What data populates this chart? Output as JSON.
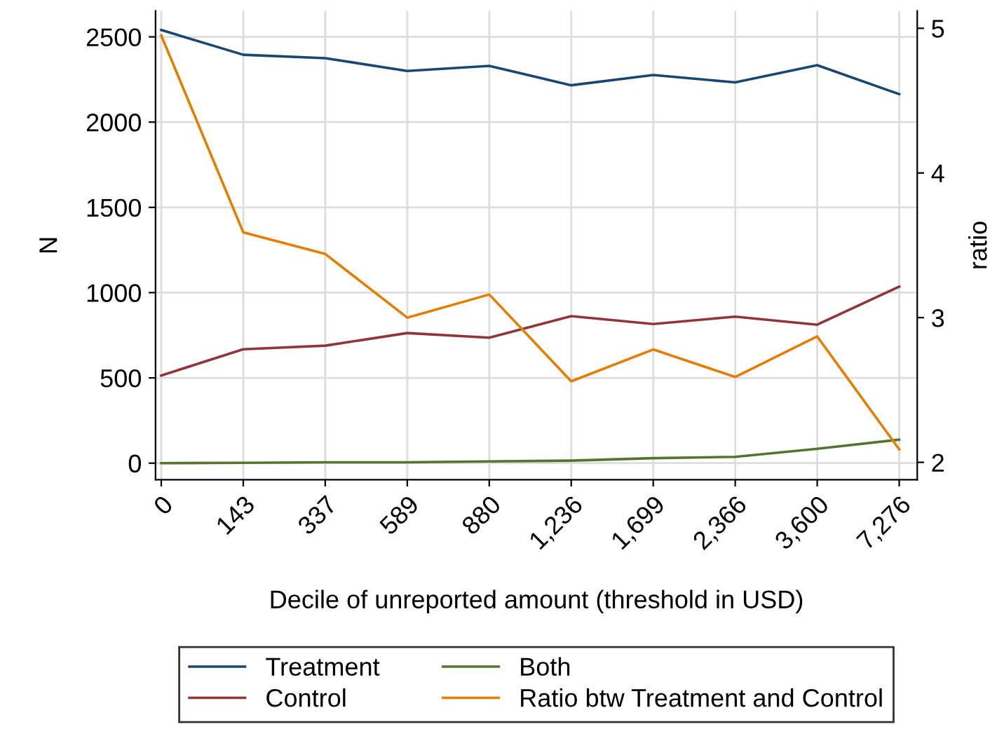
{
  "chart_data": {
    "type": "line",
    "xlabel": "Decile of unreported amount (threshold in USD)",
    "ylabel": "N",
    "y2label": "ratio",
    "categories": [
      "0",
      "143",
      "337",
      "589",
      "880",
      "1,236",
      "1,699",
      "2,366",
      "3,600",
      "7,276"
    ],
    "series": [
      {
        "name": "Treatment",
        "color": "#1a476f",
        "values": [
          2540,
          2395,
          2375,
          2300,
          2330,
          2216,
          2276,
          2233,
          2334,
          2164
        ]
      },
      {
        "name": "Control",
        "color": "#90353b",
        "values": [
          514,
          668,
          689,
          763,
          736,
          862,
          816,
          859,
          812,
          1035
        ]
      },
      {
        "name": "Both",
        "color": "#55752f",
        "values": [
          0,
          2,
          5,
          5,
          10,
          15,
          29,
          37,
          84,
          138
        ]
      },
      {
        "name": "Ratio btw Treatment and Control",
        "color": "#e37e00",
        "axis": "y2",
        "values": [
          4.95,
          3.59,
          3.44,
          3.0,
          3.16,
          2.56,
          2.78,
          2.59,
          2.87,
          2.09
        ]
      }
    ],
    "ylim": [
      -97,
      2652
    ],
    "yticks": [
      0,
      500,
      1000,
      1500,
      2000,
      2500
    ],
    "y2lim": [
      1.88,
      5.12
    ],
    "y2ticks": [
      2,
      3,
      4,
      5
    ],
    "grid": true,
    "legend": "bottom",
    "marker": "none",
    "line_style": "solid"
  }
}
